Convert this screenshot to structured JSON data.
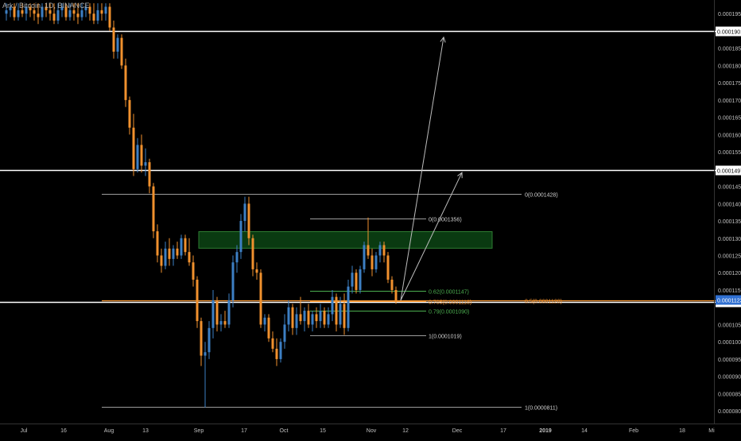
{
  "header": {
    "symbol_title": "Ark / Bitcoin, 1D, BINANCE"
  },
  "colors": {
    "background": "#000000",
    "up_candle": "#3d7fc4",
    "down_candle": "#f0912e",
    "level_line": "#ffffff",
    "fib_line": "#9c9c9c",
    "fib_green": "#4caf50",
    "fib_orange": "#f0912e",
    "zone_fill": "#0b3d12",
    "zone_border": "#2e7d32",
    "axis_text": "#c0c0c0",
    "price_tag_blue": "#2f6fd1"
  },
  "chart_data": {
    "type": "candlestick",
    "x_tick_labels": [
      "Jul",
      "16",
      "Aug",
      "13",
      "Sep",
      "17",
      "Oct",
      "15",
      "Nov",
      "12",
      "Dec",
      "17",
      "2019",
      "14",
      "Feb",
      "18",
      "Mi"
    ],
    "y_tick_labels": [
      "0.0001950",
      "0.0001850",
      "0.0001800",
      "0.0001750",
      "0.0001700",
      "0.0001650",
      "0.0001600",
      "0.0001550",
      "0.0001450",
      "0.0001400",
      "0.0001350",
      "0.0001300",
      "0.0001250",
      "0.0001200",
      "0.0001150",
      "0.0001050",
      "0.0001000",
      "0.0000950",
      "0.0000900",
      "0.0000850",
      "0.0000800"
    ],
    "ylim": [
      7.75e-05,
      0.0001985
    ],
    "horizontal_levels": [
      {
        "price": 0.0001901,
        "label": "0.0001901"
      },
      {
        "price": 0.0001497,
        "label": "0.0001497"
      },
      {
        "price": 0.0001116,
        "label": "0.0001116"
      }
    ],
    "current_price": {
      "price": 0.0001123,
      "label": "0.0001123"
    },
    "fib_long": [
      {
        "label": "0(0.0001428)",
        "price": 0.0001428
      },
      {
        "label": "0.5(0.0001120)",
        "price": 0.000112
      },
      {
        "label": "1(0.0000811)",
        "price": 8.11e-05
      }
    ],
    "fib_short": [
      {
        "label": "0(0.0001356)",
        "price": 0.0001356
      },
      {
        "label": "0.62(0.0001147)",
        "price": 0.0001147
      },
      {
        "label": "0.705(0.0001118)",
        "price": 0.0001118
      },
      {
        "label": "0.79(0.0001090)",
        "price": 0.000109
      },
      {
        "label": "1(0.0001019)",
        "price": 0.0001019
      }
    ],
    "resistance_zone": {
      "from": 0.0001271,
      "to": 0.0001319
    },
    "projection_targets": [
      0.0001882,
      0.000149
    ],
    "candles": [
      {
        "o": 0.000195,
        "h": 0.000198,
        "l": 0.000193,
        "c": 0.000196
      },
      {
        "o": 0.000196,
        "h": 0.000198,
        "l": 0.000194,
        "c": 0.000197
      },
      {
        "o": 0.000197,
        "h": 0.000198,
        "l": 0.000193,
        "c": 0.000194
      },
      {
        "o": 0.000194,
        "h": 0.000198,
        "l": 0.000193,
        "c": 0.000196
      },
      {
        "o": 0.000196,
        "h": 0.000198,
        "l": 0.000194,
        "c": 0.000195
      },
      {
        "o": 0.000195,
        "h": 0.000198,
        "l": 0.000193,
        "c": 0.000197
      },
      {
        "o": 0.000197,
        "h": 0.000198,
        "l": 0.000194,
        "c": 0.000196
      },
      {
        "o": 0.000196,
        "h": 0.000198,
        "l": 0.000193,
        "c": 0.000195
      },
      {
        "o": 0.000195,
        "h": 0.000198,
        "l": 0.000192,
        "c": 0.000194
      },
      {
        "o": 0.000194,
        "h": 0.000198,
        "l": 0.000193,
        "c": 0.000197
      },
      {
        "o": 0.000197,
        "h": 0.000198,
        "l": 0.000194,
        "c": 0.000196
      },
      {
        "o": 0.000196,
        "h": 0.000198,
        "l": 0.000193,
        "c": 0.000195
      },
      {
        "o": 0.000195,
        "h": 0.000198,
        "l": 0.000192,
        "c": 0.000193
      },
      {
        "o": 0.000193,
        "h": 0.000198,
        "l": 0.000192,
        "c": 0.000196
      },
      {
        "o": 0.000196,
        "h": 0.000198,
        "l": 0.000194,
        "c": 0.000197
      },
      {
        "o": 0.000197,
        "h": 0.000198,
        "l": 0.000193,
        "c": 0.000194
      },
      {
        "o": 0.000194,
        "h": 0.000198,
        "l": 0.000193,
        "c": 0.000196
      },
      {
        "o": 0.000196,
        "h": 0.000198,
        "l": 0.000193,
        "c": 0.000195
      },
      {
        "o": 0.000195,
        "h": 0.000198,
        "l": 0.000192,
        "c": 0.000194
      },
      {
        "o": 0.000194,
        "h": 0.000198,
        "l": 0.000193,
        "c": 0.000196
      },
      {
        "o": 0.000196,
        "h": 0.000198,
        "l": 0.000194,
        "c": 0.000197
      },
      {
        "o": 0.000197,
        "h": 0.000198,
        "l": 0.000193,
        "c": 0.000195
      },
      {
        "o": 0.000195,
        "h": 0.000198,
        "l": 0.000192,
        "c": 0.000193
      },
      {
        "o": 0.000193,
        "h": 0.000198,
        "l": 0.000192,
        "c": 0.000196
      },
      {
        "o": 0.000196,
        "h": 0.000198,
        "l": 0.000193,
        "c": 0.000195
      },
      {
        "o": 0.000195,
        "h": 0.000198,
        "l": 0.000193,
        "c": 0.000197
      },
      {
        "o": 0.000197,
        "h": 0.000198,
        "l": 0.00019,
        "c": 0.000191
      },
      {
        "o": 0.000191,
        "h": 0.000193,
        "l": 0.000182,
        "c": 0.000184
      },
      {
        "o": 0.000184,
        "h": 0.000189,
        "l": 0.000182,
        "c": 0.000188
      },
      {
        "o": 0.000188,
        "h": 0.000189,
        "l": 0.000179,
        "c": 0.00018
      },
      {
        "o": 0.00018,
        "h": 0.000182,
        "l": 0.000168,
        "c": 0.00017
      },
      {
        "o": 0.00017,
        "h": 0.000171,
        "l": 0.00016,
        "c": 0.000162
      },
      {
        "o": 0.000162,
        "h": 0.000166,
        "l": 0.000148,
        "c": 0.00015
      },
      {
        "o": 0.00015,
        "h": 0.000159,
        "l": 0.000149,
        "c": 0.000157
      },
      {
        "o": 0.000157,
        "h": 0.00016,
        "l": 0.000149,
        "c": 0.000151
      },
      {
        "o": 0.000151,
        "h": 0.000156,
        "l": 0.000148,
        "c": 0.000152
      },
      {
        "o": 0.000152,
        "h": 0.000153,
        "l": 0.000143,
        "c": 0.000145
      },
      {
        "o": 0.000145,
        "h": 0.000146,
        "l": 0.00013,
        "c": 0.000132
      },
      {
        "o": 0.000132,
        "h": 0.000134,
        "l": 0.000123,
        "c": 0.000125
      },
      {
        "o": 0.000125,
        "h": 0.000127,
        "l": 0.00012,
        "c": 0.000122
      },
      {
        "o": 0.000122,
        "h": 0.000129,
        "l": 0.000121,
        "c": 0.000127
      },
      {
        "o": 0.000127,
        "h": 0.00013,
        "l": 0.000122,
        "c": 0.000124
      },
      {
        "o": 0.000124,
        "h": 0.000128,
        "l": 0.000122,
        "c": 0.000127
      },
      {
        "o": 0.000127,
        "h": 0.000129,
        "l": 0.000124,
        "c": 0.000125
      },
      {
        "o": 0.000125,
        "h": 0.000131,
        "l": 0.000124,
        "c": 0.00013
      },
      {
        "o": 0.00013,
        "h": 0.000131,
        "l": 0.000125,
        "c": 0.000126
      },
      {
        "o": 0.000126,
        "h": 0.00013,
        "l": 0.000122,
        "c": 0.000123
      },
      {
        "o": 0.000123,
        "h": 0.000125,
        "l": 0.000116,
        "c": 0.000118
      },
      {
        "o": 0.000118,
        "h": 0.000119,
        "l": 0.000104,
        "c": 0.000106
      },
      {
        "o": 0.000106,
        "h": 0.000107,
        "l": 9.3e-05,
        "c": 9.6e-05
      },
      {
        "o": 9.6e-05,
        "h": 0.0001,
        "l": 8.1e-05,
        "c": 9.7e-05
      },
      {
        "o": 9.7e-05,
        "h": 0.000106,
        "l": 9.5e-05,
        "c": 0.000104
      },
      {
        "o": 0.000104,
        "h": 0.000115,
        "l": 0.000101,
        "c": 0.000112
      },
      {
        "o": 0.000112,
        "h": 0.000113,
        "l": 0.000103,
        "c": 0.000105
      },
      {
        "o": 0.000105,
        "h": 0.000108,
        "l": 0.000103,
        "c": 0.000106
      },
      {
        "o": 0.000106,
        "h": 0.000109,
        "l": 0.000104,
        "c": 0.000105
      },
      {
        "o": 0.000105,
        "h": 0.000114,
        "l": 0.000104,
        "c": 0.000112
      },
      {
        "o": 0.000112,
        "h": 0.000125,
        "l": 0.00011,
        "c": 0.000123
      },
      {
        "o": 0.000123,
        "h": 0.000128,
        "l": 0.00012,
        "c": 0.000126
      },
      {
        "o": 0.000126,
        "h": 0.000137,
        "l": 0.000124,
        "c": 0.000135
      },
      {
        "o": 0.000135,
        "h": 0.000142,
        "l": 0.000132,
        "c": 0.00014
      },
      {
        "o": 0.00014,
        "h": 0.000142,
        "l": 0.000128,
        "c": 0.00013
      },
      {
        "o": 0.00013,
        "h": 0.000131,
        "l": 0.000119,
        "c": 0.000121
      },
      {
        "o": 0.000121,
        "h": 0.000123,
        "l": 0.000118,
        "c": 0.00012
      },
      {
        "o": 0.00012,
        "h": 0.000121,
        "l": 0.000104,
        "c": 0.000105
      },
      {
        "o": 0.000105,
        "h": 0.000108,
        "l": 0.000103,
        "c": 0.000107
      },
      {
        "o": 0.000107,
        "h": 0.000108,
        "l": 0.0001,
        "c": 0.000101
      },
      {
        "o": 0.000101,
        "h": 0.000103,
        "l": 9.7e-05,
        "c": 9.8e-05
      },
      {
        "o": 9.8e-05,
        "h": 0.000101,
        "l": 9.3e-05,
        "c": 9.5e-05
      },
      {
        "o": 9.5e-05,
        "h": 0.000101,
        "l": 9.4e-05,
        "c": 0.0001
      },
      {
        "o": 0.0001,
        "h": 0.000108,
        "l": 9.8e-05,
        "c": 0.000105
      },
      {
        "o": 0.000105,
        "h": 0.000112,
        "l": 0.000103,
        "c": 0.00011
      },
      {
        "o": 0.00011,
        "h": 0.000111,
        "l": 0.000102,
        "c": 0.000104
      },
      {
        "o": 0.000104,
        "h": 0.00011,
        "l": 0.000102,
        "c": 0.000108
      },
      {
        "o": 0.000108,
        "h": 0.000113,
        "l": 0.000105,
        "c": 0.000106
      },
      {
        "o": 0.000106,
        "h": 0.00011,
        "l": 0.000103,
        "c": 0.000109
      },
      {
        "o": 0.000109,
        "h": 0.000111,
        "l": 0.000104,
        "c": 0.000105
      },
      {
        "o": 0.000105,
        "h": 0.000109,
        "l": 0.000103,
        "c": 0.000108
      },
      {
        "o": 0.000108,
        "h": 0.00011,
        "l": 0.000104,
        "c": 0.000106
      },
      {
        "o": 0.000106,
        "h": 0.000111,
        "l": 0.000104,
        "c": 0.000109
      },
      {
        "o": 0.000109,
        "h": 0.00011,
        "l": 0.000104,
        "c": 0.000105
      },
      {
        "o": 0.000105,
        "h": 0.00011,
        "l": 0.000104,
        "c": 0.000108
      },
      {
        "o": 0.000108,
        "h": 0.000115,
        "l": 0.000106,
        "c": 0.000113
      },
      {
        "o": 0.000113,
        "h": 0.000114,
        "l": 0.000103,
        "c": 0.000105
      },
      {
        "o": 0.000105,
        "h": 0.000113,
        "l": 0.000104,
        "c": 0.000111
      },
      {
        "o": 0.000111,
        "h": 0.000114,
        "l": 0.000102,
        "c": 0.000104
      },
      {
        "o": 0.000104,
        "h": 0.000118,
        "l": 0.000103,
        "c": 0.000116
      },
      {
        "o": 0.000116,
        "h": 0.000122,
        "l": 0.000114,
        "c": 0.00012
      },
      {
        "o": 0.00012,
        "h": 0.000121,
        "l": 0.000114,
        "c": 0.000115
      },
      {
        "o": 0.000115,
        "h": 0.000122,
        "l": 0.000114,
        "c": 0.000121
      },
      {
        "o": 0.000121,
        "h": 0.000129,
        "l": 0.00012,
        "c": 0.000128
      },
      {
        "o": 0.000128,
        "h": 0.000136,
        "l": 0.000124,
        "c": 0.000125
      },
      {
        "o": 0.000125,
        "h": 0.000127,
        "l": 0.000119,
        "c": 0.000121
      },
      {
        "o": 0.000121,
        "h": 0.000126,
        "l": 0.00012,
        "c": 0.000125
      },
      {
        "o": 0.000125,
        "h": 0.000129,
        "l": 0.000123,
        "c": 0.000128
      },
      {
        "o": 0.000128,
        "h": 0.000129,
        "l": 0.000123,
        "c": 0.000125
      },
      {
        "o": 0.000125,
        "h": 0.000126,
        "l": 0.000117,
        "c": 0.000118
      },
      {
        "o": 0.000118,
        "h": 0.000119,
        "l": 0.000114,
        "c": 0.000115
      },
      {
        "o": 0.000115,
        "h": 0.000116,
        "l": 0.000111,
        "c": 0.000112
      }
    ]
  }
}
